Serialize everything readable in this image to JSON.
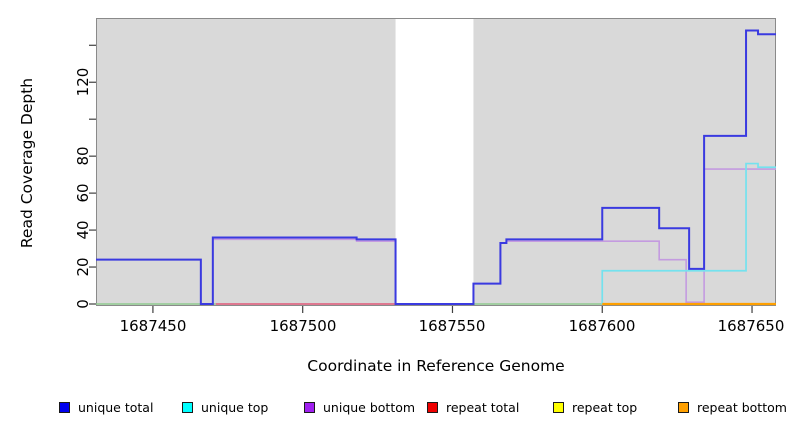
{
  "chart_data": {
    "type": "line",
    "subtype": "step-coverage-plot",
    "title": "",
    "xlabel": "Coordinate in Reference Genome",
    "ylabel": "Read Coverage Depth",
    "xlim": [
      1687431,
      1687658
    ],
    "ylim": [
      0,
      155
    ],
    "grid": "off",
    "plot_background": "#d9d9d9",
    "masked_region": {
      "from": 1687531,
      "to": 1687557,
      "color": "#ffffff"
    },
    "x_axis": {
      "ticks": [
        {
          "value": 1687450,
          "label": "1687450"
        },
        {
          "value": 1687500,
          "label": "1687500"
        },
        {
          "value": 1687550,
          "label": "1687550"
        },
        {
          "value": 1687600,
          "label": "1687600"
        },
        {
          "value": 1687650,
          "label": "1687650"
        }
      ]
    },
    "y_axis": {
      "ticks": [
        {
          "value": 0,
          "label": "0"
        },
        {
          "value": 20,
          "label": "20"
        },
        {
          "value": 40,
          "label": "40"
        },
        {
          "value": 60,
          "label": "60"
        },
        {
          "value": 80,
          "label": "80"
        },
        {
          "value": 100,
          "label": ""
        },
        {
          "value": 120,
          "label": "120"
        },
        {
          "value": 140,
          "label": ""
        }
      ]
    },
    "series": [
      {
        "name": "unique bottom",
        "color": "#c49be0",
        "points": [
          [
            1687431,
            24
          ],
          [
            1687466,
            0
          ],
          [
            1687470,
            35
          ],
          [
            1687518,
            34
          ],
          [
            1687531,
            0
          ],
          [
            1687557,
            11
          ],
          [
            1687566,
            33
          ],
          [
            1687568,
            34
          ],
          [
            1687619,
            24
          ],
          [
            1687628,
            1
          ],
          [
            1687634,
            73
          ]
        ],
        "xend": 1687658
      },
      {
        "name": "unique top",
        "color": "#74e2ee",
        "points": [
          [
            1687600,
            0
          ],
          [
            1687600,
            18
          ],
          [
            1687648,
            76
          ],
          [
            1687652,
            74
          ]
        ],
        "xend": 1687658
      },
      {
        "name": "unique total",
        "color": "#3a3ae0",
        "points": [
          [
            1687431,
            24
          ],
          [
            1687466,
            0
          ],
          [
            1687470,
            36
          ],
          [
            1687518,
            35
          ],
          [
            1687531,
            0
          ],
          [
            1687557,
            11
          ],
          [
            1687566,
            33
          ],
          [
            1687568,
            35
          ],
          [
            1687600,
            52
          ],
          [
            1687619,
            41
          ],
          [
            1687629,
            19
          ],
          [
            1687634,
            91
          ],
          [
            1687648,
            148
          ],
          [
            1687652,
            146
          ]
        ],
        "xend": 1687658
      }
    ],
    "zero_coverage_segments": [
      {
        "from": 1687431,
        "to": 1687471,
        "color": "#8fca8f",
        "layer": "under"
      },
      {
        "from": 1687471,
        "to": 1687532,
        "color": "#e05878",
        "layer": "under"
      },
      {
        "from": 1687557,
        "to": 1687600,
        "color": "#8fca8f",
        "layer": "under"
      },
      {
        "from": 1687600,
        "to": 1687658,
        "color": "#ffa000",
        "layer": "over"
      }
    ],
    "legend": [
      {
        "label": "unique total",
        "color": "#0000ee"
      },
      {
        "label": "unique top",
        "color": "#00ffff"
      },
      {
        "label": "unique bottom",
        "color": "#a020f0"
      },
      {
        "label": "repeat total",
        "color": "#ee0000"
      },
      {
        "label": "repeat top",
        "color": "#ffff00"
      },
      {
        "label": "repeat bottom",
        "color": "#ffa000"
      }
    ],
    "legend_position": "bottom"
  }
}
